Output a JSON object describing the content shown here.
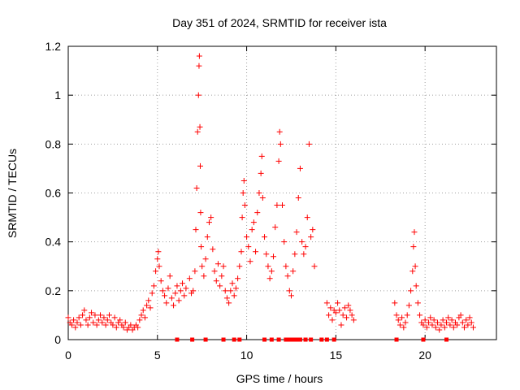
{
  "chart_data": {
    "type": "scatter",
    "title": "Day 351 of 2024, SRMTID for receiver ista",
    "xlabel": "GPS time / hours",
    "ylabel": "SRMTID / TECUs",
    "xlim": [
      0,
      24
    ],
    "ylim": [
      0,
      1.2
    ],
    "xticks": [
      0,
      5,
      10,
      15,
      20
    ],
    "yticks": [
      0,
      0.2,
      0.4,
      0.6,
      0.8,
      1.0,
      1.2
    ],
    "xtick_labels": [
      "0",
      "5",
      "10",
      "15",
      "20"
    ],
    "ytick_labels": [
      "0",
      "0.2",
      "0.4",
      "0.6",
      "0.8",
      "1",
      "1.2"
    ],
    "grid": true,
    "marker": "+",
    "color": "#ff0000",
    "series": [
      {
        "name": "SRMTID",
        "points": [
          [
            0.0,
            0.09
          ],
          [
            0.1,
            0.07
          ],
          [
            0.2,
            0.06
          ],
          [
            0.3,
            0.08
          ],
          [
            0.4,
            0.05
          ],
          [
            0.5,
            0.07
          ],
          [
            0.6,
            0.09
          ],
          [
            0.7,
            0.06
          ],
          [
            0.8,
            0.1
          ],
          [
            0.9,
            0.12
          ],
          [
            1.0,
            0.08
          ],
          [
            1.1,
            0.06
          ],
          [
            1.2,
            0.09
          ],
          [
            1.3,
            0.11
          ],
          [
            1.4,
            0.07
          ],
          [
            1.5,
            0.1
          ],
          [
            1.6,
            0.06
          ],
          [
            1.7,
            0.08
          ],
          [
            1.8,
            0.1
          ],
          [
            1.9,
            0.07
          ],
          [
            2.0,
            0.09
          ],
          [
            2.1,
            0.06
          ],
          [
            2.2,
            0.08
          ],
          [
            2.3,
            0.1
          ],
          [
            2.4,
            0.07
          ],
          [
            2.5,
            0.06
          ],
          [
            2.6,
            0.09
          ],
          [
            2.7,
            0.05
          ],
          [
            2.8,
            0.07
          ],
          [
            2.9,
            0.08
          ],
          [
            3.0,
            0.06
          ],
          [
            3.1,
            0.05
          ],
          [
            3.2,
            0.07
          ],
          [
            3.3,
            0.04
          ],
          [
            3.4,
            0.05
          ],
          [
            3.5,
            0.06
          ],
          [
            3.6,
            0.04
          ],
          [
            3.7,
            0.05
          ],
          [
            3.8,
            0.06
          ],
          [
            3.9,
            0.05
          ],
          [
            4.0,
            0.08
          ],
          [
            4.1,
            0.1
          ],
          [
            4.2,
            0.12
          ],
          [
            4.3,
            0.09
          ],
          [
            4.4,
            0.14
          ],
          [
            4.5,
            0.16
          ],
          [
            4.6,
            0.13
          ],
          [
            4.7,
            0.19
          ],
          [
            4.8,
            0.22
          ],
          [
            4.9,
            0.28
          ],
          [
            5.0,
            0.33
          ],
          [
            5.05,
            0.36
          ],
          [
            5.1,
            0.3
          ],
          [
            5.2,
            0.24
          ],
          [
            5.3,
            0.2
          ],
          [
            5.4,
            0.18
          ],
          [
            5.5,
            0.15
          ],
          [
            5.6,
            0.21
          ],
          [
            5.7,
            0.26
          ],
          [
            5.8,
            0.17
          ],
          [
            5.9,
            0.14
          ],
          [
            6.0,
            0.19
          ],
          [
            6.1,
            0.22
          ],
          [
            6.2,
            0.16
          ],
          [
            6.3,
            0.2
          ],
          [
            6.4,
            0.23
          ],
          [
            6.5,
            0.18
          ],
          [
            6.6,
            0.21
          ],
          [
            6.8,
            0.25
          ],
          [
            6.9,
            0.19
          ],
          [
            7.0,
            0.2
          ],
          [
            7.1,
            0.28
          ],
          [
            7.15,
            0.45
          ],
          [
            7.2,
            0.62
          ],
          [
            7.25,
            0.85
          ],
          [
            7.3,
            1.0
          ],
          [
            7.33,
            1.12
          ],
          [
            7.35,
            1.16
          ],
          [
            7.38,
            0.87
          ],
          [
            7.4,
            0.71
          ],
          [
            7.42,
            0.52
          ],
          [
            7.45,
            0.38
          ],
          [
            7.5,
            0.3
          ],
          [
            7.6,
            0.26
          ],
          [
            7.7,
            0.33
          ],
          [
            7.8,
            0.42
          ],
          [
            7.9,
            0.48
          ],
          [
            8.0,
            0.5
          ],
          [
            8.1,
            0.37
          ],
          [
            8.2,
            0.28
          ],
          [
            8.3,
            0.24
          ],
          [
            8.4,
            0.31
          ],
          [
            8.5,
            0.22
          ],
          [
            8.6,
            0.26
          ],
          [
            8.7,
            0.3
          ],
          [
            8.8,
            0.2
          ],
          [
            8.9,
            0.17
          ],
          [
            9.0,
            0.15
          ],
          [
            9.1,
            0.2
          ],
          [
            9.2,
            0.23
          ],
          [
            9.3,
            0.18
          ],
          [
            9.4,
            0.21
          ],
          [
            9.5,
            0.25
          ],
          [
            9.6,
            0.3
          ],
          [
            9.7,
            0.36
          ],
          [
            9.75,
            0.5
          ],
          [
            9.8,
            0.6
          ],
          [
            9.85,
            0.65
          ],
          [
            9.9,
            0.55
          ],
          [
            10.0,
            0.42
          ],
          [
            10.1,
            0.38
          ],
          [
            10.2,
            0.32
          ],
          [
            10.3,
            0.45
          ],
          [
            10.4,
            0.48
          ],
          [
            10.5,
            0.36
          ],
          [
            10.6,
            0.52
          ],
          [
            10.7,
            0.6
          ],
          [
            10.8,
            0.68
          ],
          [
            10.85,
            0.75
          ],
          [
            10.9,
            0.58
          ],
          [
            11.0,
            0.42
          ],
          [
            11.1,
            0.35
          ],
          [
            11.2,
            0.3
          ],
          [
            11.3,
            0.25
          ],
          [
            11.4,
            0.28
          ],
          [
            11.5,
            0.34
          ],
          [
            11.6,
            0.46
          ],
          [
            11.7,
            0.55
          ],
          [
            11.8,
            0.73
          ],
          [
            11.85,
            0.85
          ],
          [
            11.9,
            0.8
          ],
          [
            12.0,
            0.55
          ],
          [
            12.1,
            0.4
          ],
          [
            12.2,
            0.3
          ],
          [
            12.3,
            0.26
          ],
          [
            12.4,
            0.2
          ],
          [
            12.5,
            0.18
          ],
          [
            12.6,
            0.28
          ],
          [
            12.7,
            0.35
          ],
          [
            12.8,
            0.44
          ],
          [
            12.9,
            0.58
          ],
          [
            13.0,
            0.7
          ],
          [
            13.1,
            0.4
          ],
          [
            13.2,
            0.35
          ],
          [
            13.3,
            0.38
          ],
          [
            13.4,
            0.5
          ],
          [
            13.5,
            0.8
          ],
          [
            13.6,
            0.42
          ],
          [
            13.7,
            0.45
          ],
          [
            13.8,
            0.3
          ],
          [
            14.5,
            0.15
          ],
          [
            14.6,
            0.1
          ],
          [
            14.7,
            0.13
          ],
          [
            14.8,
            0.08
          ],
          [
            14.9,
            0.12
          ],
          [
            15.0,
            0.11
          ],
          [
            15.1,
            0.15
          ],
          [
            15.2,
            0.12
          ],
          [
            15.3,
            0.06
          ],
          [
            15.4,
            0.1
          ],
          [
            15.5,
            0.13
          ],
          [
            15.6,
            0.09
          ],
          [
            15.7,
            0.14
          ],
          [
            15.8,
            0.12
          ],
          [
            15.9,
            0.1
          ],
          [
            16.0,
            0.08
          ],
          [
            18.3,
            0.15
          ],
          [
            18.4,
            0.1
          ],
          [
            18.5,
            0.08
          ],
          [
            18.6,
            0.06
          ],
          [
            18.7,
            0.09
          ],
          [
            18.8,
            0.05
          ],
          [
            18.9,
            0.07
          ],
          [
            19.0,
            0.1
          ],
          [
            19.1,
            0.14
          ],
          [
            19.2,
            0.2
          ],
          [
            19.3,
            0.28
          ],
          [
            19.35,
            0.38
          ],
          [
            19.4,
            0.44
          ],
          [
            19.45,
            0.3
          ],
          [
            19.5,
            0.22
          ],
          [
            19.6,
            0.15
          ],
          [
            19.7,
            0.1
          ],
          [
            19.8,
            0.07
          ],
          [
            19.9,
            0.06
          ],
          [
            20.0,
            0.08
          ],
          [
            20.1,
            0.05
          ],
          [
            20.2,
            0.07
          ],
          [
            20.3,
            0.09
          ],
          [
            20.4,
            0.06
          ],
          [
            20.5,
            0.08
          ],
          [
            20.6,
            0.05
          ],
          [
            20.7,
            0.07
          ],
          [
            20.8,
            0.04
          ],
          [
            20.9,
            0.06
          ],
          [
            21.0,
            0.08
          ],
          [
            21.1,
            0.05
          ],
          [
            21.2,
            0.07
          ],
          [
            21.3,
            0.09
          ],
          [
            21.4,
            0.06
          ],
          [
            21.5,
            0.08
          ],
          [
            21.6,
            0.05
          ],
          [
            21.7,
            0.07
          ],
          [
            21.8,
            0.06
          ],
          [
            21.9,
            0.09
          ],
          [
            22.0,
            0.1
          ],
          [
            22.1,
            0.07
          ],
          [
            22.2,
            0.05
          ],
          [
            22.3,
            0.08
          ],
          [
            22.4,
            0.06
          ],
          [
            22.5,
            0.09
          ],
          [
            22.6,
            0.07
          ],
          [
            22.7,
            0.05
          ]
        ]
      }
    ],
    "gap_markers": [
      6.1,
      6.95,
      7.7,
      8.7,
      9.3,
      9.6,
      11.0,
      11.4,
      11.8,
      12.2,
      12.4,
      12.55,
      12.7,
      12.85,
      13.0,
      13.3,
      13.6,
      14.2,
      14.5,
      14.9,
      18.4,
      19.9,
      21.2
    ]
  }
}
